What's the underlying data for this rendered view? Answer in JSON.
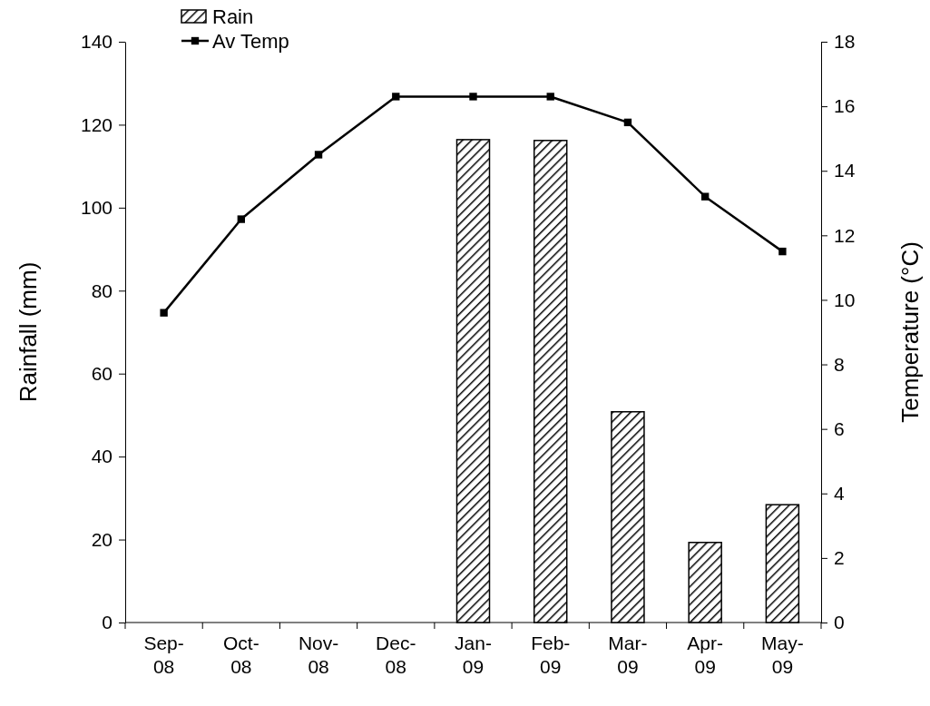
{
  "chart_data": {
    "type": "bar",
    "categories": [
      "Sep-08",
      "Oct-08",
      "Nov-08",
      "Dec-08",
      "Jan-09",
      "Feb-09",
      "Mar-09",
      "Apr-09",
      "May-09"
    ],
    "ylabel": "Rainfall (mm)",
    "y2label": "Temperature (°C)",
    "ylim": [
      0,
      140
    ],
    "yticks": [
      0,
      20,
      40,
      60,
      80,
      100,
      120,
      140
    ],
    "y2lim": [
      0,
      18
    ],
    "y2ticks": [
      0,
      2,
      4,
      6,
      8,
      10,
      12,
      14,
      16,
      18
    ],
    "legend": "top left",
    "marker": "square",
    "series": [
      {
        "name": "Rain",
        "color": "#000000",
        "values": [
          null,
          null,
          null,
          null,
          116.4,
          116.2,
          50.8,
          19.3,
          28.4
        ]
      },
      {
        "name": "Av Temp",
        "type": "line",
        "axis": "y2",
        "color": "#000000",
        "values": [
          9.6,
          12.5,
          14.5,
          16.3,
          16.3,
          16.3,
          15.5,
          13.2,
          11.5
        ]
      }
    ]
  }
}
